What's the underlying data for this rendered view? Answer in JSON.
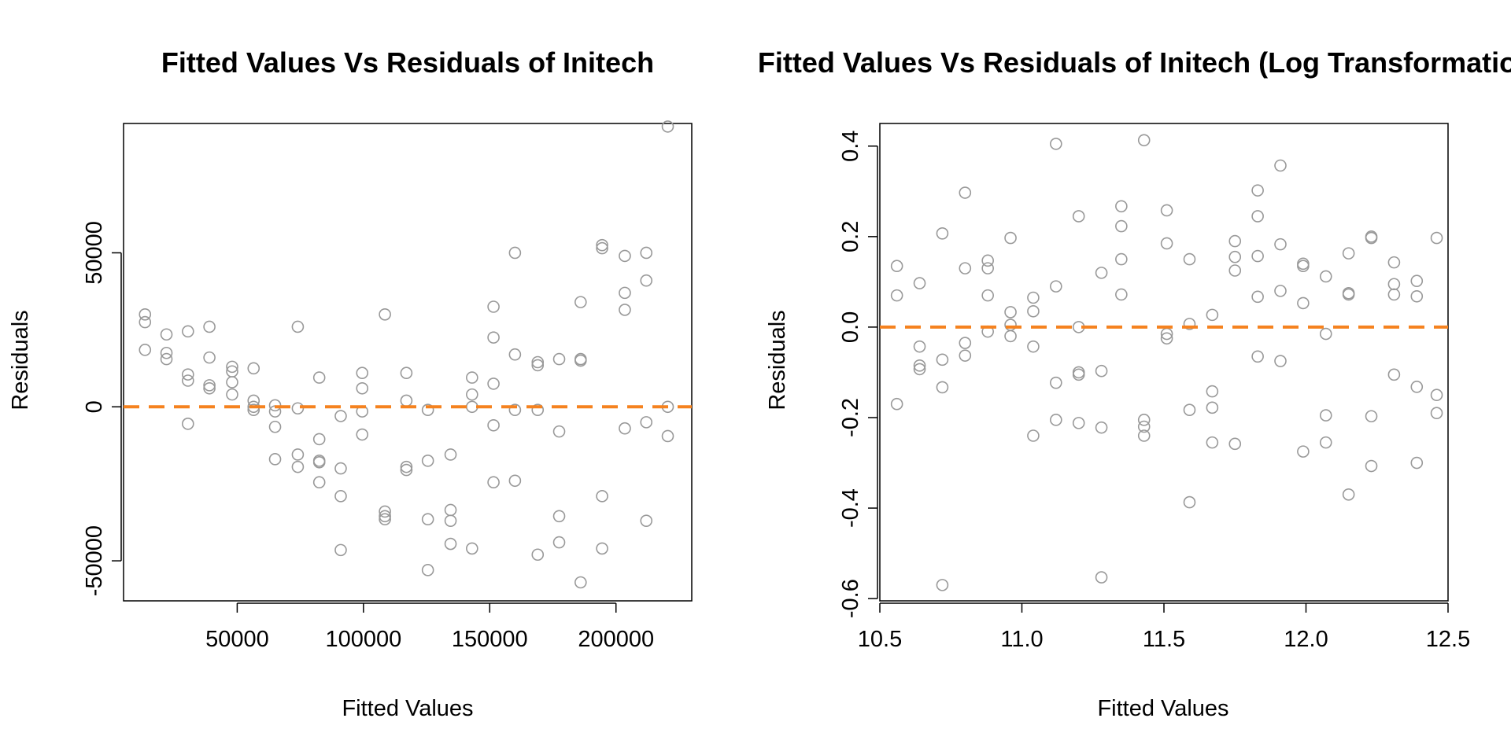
{
  "colors": {
    "points": "#999999",
    "refline": "#F5821F",
    "axes": "#000000"
  },
  "chart_data": [
    {
      "type": "scatter",
      "title": "Fitted Values Vs Residuals of Initech",
      "xlabel": "Fitted Values",
      "ylabel": "Residuals",
      "xlim": [
        5000,
        230000
      ],
      "ylim": [
        -63000,
        92000
      ],
      "xticks": [
        50000,
        100000,
        150000,
        200000
      ],
      "xtick_labels": [
        "50000",
        "100000",
        "150000",
        "200000"
      ],
      "yticks": [
        -50000,
        0,
        50000
      ],
      "ytick_labels": [
        "-50000",
        "0",
        "50000"
      ],
      "reference_line": {
        "y": 0,
        "style": "dashed"
      },
      "points": [
        [
          13500,
          30000
        ],
        [
          13500,
          27500
        ],
        [
          13500,
          18500
        ],
        [
          22000,
          23500
        ],
        [
          22000,
          17500
        ],
        [
          22000,
          15500
        ],
        [
          30500,
          24500
        ],
        [
          30500,
          10500
        ],
        [
          30500,
          8500
        ],
        [
          30500,
          -5500
        ],
        [
          39000,
          26000
        ],
        [
          39000,
          16000
        ],
        [
          39000,
          7000
        ],
        [
          39000,
          6000
        ],
        [
          48000,
          13000
        ],
        [
          48000,
          11500
        ],
        [
          48000,
          8000
        ],
        [
          48000,
          4000
        ],
        [
          56500,
          12500
        ],
        [
          56500,
          2000
        ],
        [
          56500,
          0
        ],
        [
          56500,
          -1000
        ],
        [
          65000,
          500
        ],
        [
          65000,
          -1500
        ],
        [
          65000,
          -6500
        ],
        [
          65000,
          -17000
        ],
        [
          74000,
          26000
        ],
        [
          74000,
          -500
        ],
        [
          74000,
          -15500
        ],
        [
          74000,
          -19500
        ],
        [
          82500,
          9500
        ],
        [
          82500,
          -10500
        ],
        [
          82500,
          -17500
        ],
        [
          82500,
          -18000
        ],
        [
          82500,
          -24500
        ],
        [
          91000,
          -3000
        ],
        [
          91000,
          -20000
        ],
        [
          91000,
          -29000
        ],
        [
          91000,
          -46500
        ],
        [
          99500,
          11000
        ],
        [
          99500,
          6000
        ],
        [
          99500,
          -1500
        ],
        [
          99500,
          -9000
        ],
        [
          108500,
          30000
        ],
        [
          108500,
          -34000
        ],
        [
          108500,
          -35500
        ],
        [
          108500,
          -36500
        ],
        [
          117000,
          11000
        ],
        [
          117000,
          2000
        ],
        [
          117000,
          -19500
        ],
        [
          117000,
          -20500
        ],
        [
          125500,
          -1000
        ],
        [
          125500,
          -17500
        ],
        [
          125500,
          -36500
        ],
        [
          125500,
          -53000
        ],
        [
          134500,
          -15500
        ],
        [
          134500,
          -33500
        ],
        [
          134500,
          -37000
        ],
        [
          134500,
          -44500
        ],
        [
          143000,
          9500
        ],
        [
          143000,
          4000
        ],
        [
          143000,
          0
        ],
        [
          143000,
          -46000
        ],
        [
          151500,
          32500
        ],
        [
          151500,
          22500
        ],
        [
          151500,
          7500
        ],
        [
          151500,
          -6000
        ],
        [
          151500,
          -24500
        ],
        [
          160000,
          50000
        ],
        [
          160000,
          17000
        ],
        [
          160000,
          -1000
        ],
        [
          160000,
          -24000
        ],
        [
          169000,
          14500
        ],
        [
          169000,
          13500
        ],
        [
          169000,
          -1000
        ],
        [
          169000,
          -48000
        ],
        [
          177500,
          15500
        ],
        [
          177500,
          -8000
        ],
        [
          177500,
          -35500
        ],
        [
          177500,
          -44000
        ],
        [
          186000,
          34000
        ],
        [
          186000,
          15500
        ],
        [
          186000,
          15000
        ],
        [
          186000,
          -57000
        ],
        [
          194500,
          52500
        ],
        [
          194500,
          51500
        ],
        [
          194500,
          -29000
        ],
        [
          194500,
          -46000
        ],
        [
          203500,
          49000
        ],
        [
          203500,
          37000
        ],
        [
          203500,
          31500
        ],
        [
          203500,
          -7000
        ],
        [
          212000,
          50000
        ],
        [
          212000,
          41000
        ],
        [
          212000,
          -5000
        ],
        [
          212000,
          -37000
        ],
        [
          220500,
          91000
        ],
        [
          220500,
          0
        ],
        [
          220500,
          -9500
        ]
      ]
    },
    {
      "type": "scatter",
      "title": "Fitted Values Vs Residuals of Initech (Log Transformation of",
      "xlabel": "Fitted Values",
      "ylabel": "Residuals",
      "xlim": [
        10.5,
        12.5
      ],
      "ylim": [
        -0.605,
        0.45
      ],
      "xticks": [
        10.5,
        11.0,
        11.5,
        12.0,
        12.5
      ],
      "xtick_labels": [
        "10.5",
        "11.0",
        "11.5",
        "12.0",
        "12.5"
      ],
      "yticks": [
        -0.6,
        -0.4,
        -0.2,
        0.0,
        0.2,
        0.4
      ],
      "ytick_labels": [
        "-0.6",
        "-0.4",
        "-0.2",
        "0.0",
        "0.2",
        "0.4"
      ],
      "reference_line": {
        "y": 0,
        "style": "dashed"
      },
      "points": [
        [
          10.56,
          0.135
        ],
        [
          10.56,
          0.07
        ],
        [
          10.56,
          -0.17
        ],
        [
          10.64,
          0.097
        ],
        [
          10.64,
          -0.043
        ],
        [
          10.64,
          -0.085
        ],
        [
          10.64,
          -0.093
        ],
        [
          10.72,
          0.207
        ],
        [
          10.72,
          -0.072
        ],
        [
          10.72,
          -0.133
        ],
        [
          10.72,
          -0.57
        ],
        [
          10.8,
          0.297
        ],
        [
          10.8,
          0.13
        ],
        [
          10.8,
          -0.035
        ],
        [
          10.8,
          -0.063
        ],
        [
          10.88,
          0.147
        ],
        [
          10.88,
          0.13
        ],
        [
          10.88,
          0.07
        ],
        [
          10.88,
          -0.01
        ],
        [
          10.96,
          0.197
        ],
        [
          10.96,
          0.033
        ],
        [
          10.96,
          0.005
        ],
        [
          10.96,
          -0.02
        ],
        [
          11.04,
          0.065
        ],
        [
          11.04,
          0.035
        ],
        [
          11.04,
          -0.043
        ],
        [
          11.04,
          -0.24
        ],
        [
          11.12,
          0.405
        ],
        [
          11.12,
          0.09
        ],
        [
          11.12,
          -0.123
        ],
        [
          11.12,
          -0.205
        ],
        [
          11.2,
          0.245
        ],
        [
          11.2,
          0.0
        ],
        [
          11.2,
          -0.1
        ],
        [
          11.2,
          -0.105
        ],
        [
          11.2,
          -0.212
        ],
        [
          11.28,
          0.12
        ],
        [
          11.28,
          -0.097
        ],
        [
          11.28,
          -0.222
        ],
        [
          11.28,
          -0.553
        ],
        [
          11.35,
          0.267
        ],
        [
          11.35,
          0.223
        ],
        [
          11.35,
          0.15
        ],
        [
          11.35,
          0.072
        ],
        [
          11.43,
          0.413
        ],
        [
          11.43,
          -0.205
        ],
        [
          11.43,
          -0.22
        ],
        [
          11.43,
          -0.24
        ],
        [
          11.51,
          0.258
        ],
        [
          11.51,
          0.185
        ],
        [
          11.51,
          -0.015
        ],
        [
          11.51,
          -0.025
        ],
        [
          11.59,
          0.15
        ],
        [
          11.59,
          0.007
        ],
        [
          11.59,
          -0.183
        ],
        [
          11.59,
          -0.387
        ],
        [
          11.67,
          0.027
        ],
        [
          11.67,
          -0.142
        ],
        [
          11.67,
          -0.178
        ],
        [
          11.67,
          -0.255
        ],
        [
          11.75,
          0.19
        ],
        [
          11.75,
          0.155
        ],
        [
          11.75,
          0.125
        ],
        [
          11.75,
          -0.258
        ],
        [
          11.83,
          0.302
        ],
        [
          11.83,
          0.245
        ],
        [
          11.83,
          0.157
        ],
        [
          11.83,
          0.067
        ],
        [
          11.83,
          -0.065
        ],
        [
          11.91,
          0.357
        ],
        [
          11.91,
          0.183
        ],
        [
          11.91,
          0.08
        ],
        [
          11.91,
          -0.075
        ],
        [
          11.99,
          0.14
        ],
        [
          11.99,
          0.135
        ],
        [
          11.99,
          0.053
        ],
        [
          11.99,
          -0.275
        ],
        [
          12.07,
          0.112
        ],
        [
          12.07,
          -0.015
        ],
        [
          12.07,
          -0.195
        ],
        [
          12.07,
          -0.255
        ],
        [
          12.15,
          0.163
        ],
        [
          12.15,
          0.075
        ],
        [
          12.15,
          0.072
        ],
        [
          12.15,
          -0.37
        ],
        [
          12.23,
          0.2
        ],
        [
          12.23,
          0.197
        ],
        [
          12.23,
          -0.197
        ],
        [
          12.23,
          -0.307
        ],
        [
          12.31,
          0.143
        ],
        [
          12.31,
          0.095
        ],
        [
          12.31,
          0.072
        ],
        [
          12.31,
          -0.105
        ],
        [
          12.39,
          0.102
        ],
        [
          12.39,
          0.068
        ],
        [
          12.39,
          -0.132
        ],
        [
          12.39,
          -0.3
        ],
        [
          12.46,
          0.197
        ],
        [
          12.46,
          -0.15
        ],
        [
          12.46,
          -0.19
        ]
      ]
    }
  ]
}
